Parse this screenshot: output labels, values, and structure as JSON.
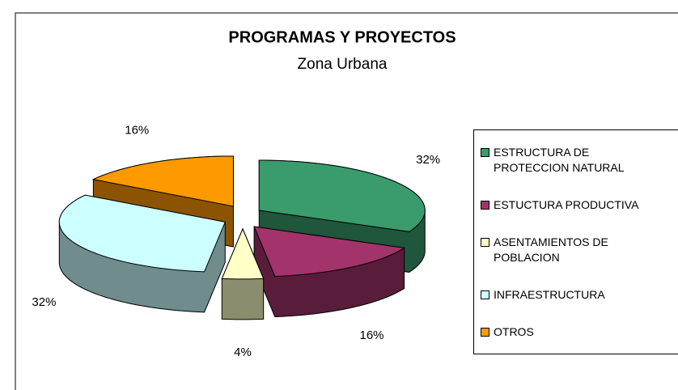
{
  "chart_data": {
    "type": "pie",
    "title": "PROGRAMAS Y PROYECTOS",
    "subtitle": "Zona Urbana",
    "categories": [
      "ESTRUCTURA DE PROTECCION NATURAL",
      "ESTUCTURA PRODUCTIVA",
      "ASENTAMIENTOS DE POBLACION",
      "INFRAESTRUCTURA",
      "OTROS"
    ],
    "values": [
      32,
      16,
      4,
      32,
      16
    ],
    "value_labels": [
      "32%",
      "16%",
      "4%",
      "32%",
      "16%"
    ],
    "colors": [
      "#3a9c6c",
      "#a3336b",
      "#ffffc8",
      "#ccffff",
      "#ff9900"
    ],
    "legend": "right"
  }
}
